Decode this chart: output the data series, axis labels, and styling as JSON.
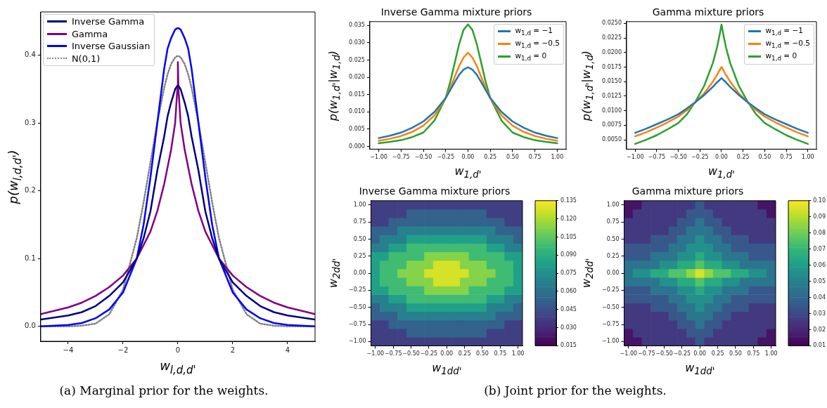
{
  "chart_data": [
    {
      "type": "line",
      "xlabel": "w$_{l,d,d'}$",
      "ylabel": "p(w$_{l,d,d'}$)",
      "legend": "top left",
      "annotations": [
        "(a) Marginal prior for the weights."
      ],
      "x": [
        -5,
        -4,
        -3.5,
        -3,
        -2.5,
        -2,
        -1.5,
        -1.25,
        -1,
        -0.75,
        -0.5,
        -0.375,
        -0.25,
        -0.1,
        -0.02,
        0,
        0.02,
        0.1,
        0.25,
        0.375,
        0.5,
        0.75,
        1,
        1.25,
        1.5,
        2,
        2.5,
        3,
        3.5,
        4,
        5
      ],
      "series": [
        {
          "name": "Inverse Gamma",
          "color": "#000080",
          "values": [
            0.01,
            0.016,
            0.021,
            0.03,
            0.045,
            0.065,
            0.1,
            0.13,
            0.17,
            0.23,
            0.28,
            0.31,
            0.33,
            0.35,
            0.355,
            0.355,
            0.355,
            0.35,
            0.33,
            0.31,
            0.28,
            0.23,
            0.17,
            0.13,
            0.1,
            0.065,
            0.045,
            0.03,
            0.021,
            0.016,
            0.01
          ]
        },
        {
          "name": "Gamma",
          "color": "#800080",
          "values": [
            0.018,
            0.028,
            0.035,
            0.045,
            0.058,
            0.075,
            0.1,
            0.12,
            0.14,
            0.17,
            0.21,
            0.235,
            0.26,
            0.3,
            0.35,
            0.39,
            0.35,
            0.3,
            0.26,
            0.235,
            0.21,
            0.17,
            0.14,
            0.12,
            0.1,
            0.075,
            0.058,
            0.045,
            0.035,
            0.028,
            0.018
          ]
        },
        {
          "name": "Inverse Gaussian",
          "color": "#0000ff",
          "values": [
            0.0,
            0.002,
            0.005,
            0.012,
            0.025,
            0.05,
            0.1,
            0.15,
            0.22,
            0.3,
            0.38,
            0.41,
            0.425,
            0.438,
            0.44,
            0.44,
            0.44,
            0.438,
            0.425,
            0.41,
            0.38,
            0.3,
            0.22,
            0.15,
            0.1,
            0.05,
            0.025,
            0.012,
            0.005,
            0.002,
            0.0
          ]
        },
        {
          "name": "N(0,1)",
          "color": "#808080",
          "line_style": "dotted",
          "values": [
            0.0,
            0.0,
            0.001,
            0.004,
            0.018,
            0.054,
            0.13,
            0.183,
            0.242,
            0.301,
            0.352,
            0.372,
            0.387,
            0.397,
            0.399,
            0.399,
            0.399,
            0.397,
            0.387,
            0.372,
            0.352,
            0.301,
            0.242,
            0.183,
            0.13,
            0.054,
            0.018,
            0.004,
            0.001,
            0.0,
            0.0
          ]
        }
      ],
      "xlim": [
        -5,
        5
      ],
      "ylim": [
        -0.022,
        0.464
      ],
      "xticks": [
        {
          "value": -4,
          "label": "−4"
        },
        {
          "value": -2,
          "label": "−2"
        },
        0,
        2,
        4
      ],
      "yticks": [
        {
          "value": 0,
          "label": "0.0"
        },
        0.1,
        0.2,
        0.3,
        0.4
      ]
    },
    {
      "type": "line",
      "title": "Inverse Gamma mixture priors",
      "xlabel": "w$_{1,d'}$",
      "ylabel": "p(w$_{1,d'}$|w$_{1,d}$)",
      "legend": "top right",
      "x": [
        -1,
        -0.875,
        -0.75,
        -0.625,
        -0.5,
        -0.375,
        -0.25,
        -0.2,
        -0.15,
        -0.1,
        -0.05,
        0,
        0.05,
        0.1,
        0.15,
        0.2,
        0.25,
        0.375,
        0.5,
        0.625,
        0.75,
        0.875,
        1
      ],
      "series": [
        {
          "name": "w$_{1,d}$ = −1",
          "color": "#1f77b4",
          "values": [
            0.0024,
            0.0031,
            0.004,
            0.0054,
            0.0072,
            0.01,
            0.014,
            0.0162,
            0.0185,
            0.0207,
            0.0222,
            0.0229,
            0.0222,
            0.0207,
            0.0185,
            0.0162,
            0.014,
            0.01,
            0.0072,
            0.0054,
            0.004,
            0.0031,
            0.0024
          ]
        },
        {
          "name": "w$_{1,d}$ = −0.5",
          "color": "#ff7f0e",
          "values": [
            0.0016,
            0.0022,
            0.003,
            0.0042,
            0.006,
            0.009,
            0.014,
            0.0168,
            0.02,
            0.0232,
            0.0257,
            0.0271,
            0.0257,
            0.0232,
            0.02,
            0.0168,
            0.014,
            0.009,
            0.006,
            0.0042,
            0.003,
            0.0022,
            0.0016
          ]
        },
        {
          "name": "w$_{1,d}$ = 0",
          "color": "#2ca02c",
          "values": [
            0.0009,
            0.0013,
            0.0018,
            0.0027,
            0.004,
            0.0075,
            0.014,
            0.0185,
            0.024,
            0.0295,
            0.0337,
            0.0353,
            0.0337,
            0.0295,
            0.024,
            0.0185,
            0.014,
            0.0075,
            0.004,
            0.0027,
            0.0018,
            0.0013,
            0.0009
          ]
        }
      ],
      "xlim": [
        -1.1,
        1.1
      ],
      "ylim": [
        -0.0008,
        0.0361
      ],
      "xticks": [
        {
          "value": -1,
          "label": "−1.00"
        },
        {
          "value": -0.75,
          "label": "−0.75"
        },
        {
          "value": -0.5,
          "label": "−0.50"
        },
        {
          "value": -0.25,
          "label": "−0.25"
        },
        {
          "value": 0,
          "label": "0.00"
        },
        0.25,
        {
          "value": 0.5,
          "label": "0.50"
        },
        0.75,
        {
          "value": 1,
          "label": "1.00"
        }
      ],
      "yticks": [
        {
          "value": 0,
          "label": "0.000"
        },
        0.005,
        {
          "value": 0.01,
          "label": "0.010"
        },
        0.015,
        {
          "value": 0.02,
          "label": "0.020"
        },
        0.025,
        {
          "value": 0.03,
          "label": "0.030"
        },
        0.035
      ]
    },
    {
      "type": "line",
      "title": "Gamma mixture priors",
      "xlabel": "w$_{1,d'}$",
      "ylabel": "p(w$_{1,d'}$|w$_{1,d}$)",
      "legend": "top right",
      "x": [
        -1,
        -0.875,
        -0.75,
        -0.625,
        -0.5,
        -0.4,
        -0.3,
        -0.2,
        -0.1,
        -0.05,
        -0.02,
        0,
        0.02,
        0.05,
        0.1,
        0.2,
        0.3,
        0.4,
        0.5,
        0.625,
        0.75,
        0.875,
        1
      ],
      "series": [
        {
          "name": "w$_{1,d}$ = −1",
          "color": "#1f77b4",
          "values": [
            0.0062,
            0.0069,
            0.0077,
            0.0085,
            0.0094,
            0.0104,
            0.0115,
            0.0127,
            0.0141,
            0.0149,
            0.0153,
            0.0156,
            0.0153,
            0.0149,
            0.0141,
            0.0127,
            0.0115,
            0.0104,
            0.0094,
            0.0085,
            0.0077,
            0.0069,
            0.0062
          ]
        },
        {
          "name": "w$_{1,d}$ = −0.5",
          "color": "#ff7f0e",
          "values": [
            0.0056,
            0.0063,
            0.0071,
            0.008,
            0.009,
            0.0101,
            0.0115,
            0.013,
            0.015,
            0.0162,
            0.017,
            0.0175,
            0.017,
            0.0162,
            0.015,
            0.013,
            0.0115,
            0.0101,
            0.009,
            0.008,
            0.0071,
            0.0063,
            0.0056
          ]
        },
        {
          "name": "w$_{1,d}$ = 0",
          "color": "#2ca02c",
          "values": [
            0.0043,
            0.005,
            0.0058,
            0.0068,
            0.0079,
            0.0094,
            0.0116,
            0.0143,
            0.0182,
            0.021,
            0.0232,
            0.0248,
            0.0232,
            0.021,
            0.0182,
            0.0143,
            0.0116,
            0.0094,
            0.0079,
            0.0068,
            0.0058,
            0.005,
            0.0043
          ]
        }
      ],
      "xlim": [
        -1.1,
        1.1
      ],
      "ylim": [
        0.0034,
        0.0253
      ],
      "xticks": [
        {
          "value": -1,
          "label": "−1.00"
        },
        {
          "value": -0.75,
          "label": "−0.75"
        },
        {
          "value": -0.5,
          "label": "−0.50"
        },
        {
          "value": -0.25,
          "label": "−0.25"
        },
        {
          "value": 0,
          "label": "0.00"
        },
        0.25,
        {
          "value": 0.5,
          "label": "0.50"
        },
        0.75,
        {
          "value": 1,
          "label": "1.00"
        }
      ],
      "yticks": [
        {
          "value": 0.005,
          "label": "0.0050"
        },
        0.0075,
        {
          "value": 0.01,
          "label": "0.0100"
        },
        0.0125,
        {
          "value": 0.015,
          "label": "0.0150"
        },
        0.0175,
        {
          "value": 0.02,
          "label": "0.0200"
        },
        0.0225,
        {
          "value": 0.025,
          "label": "0.0250"
        }
      ]
    },
    {
      "type": "heatmap",
      "title": "Inverse Gamma mixture priors",
      "xlabel": "w$_{1dd'}$",
      "ylabel": "w$_{2dd'}$",
      "annotations": [
        "(b) Joint prior for the weights."
      ],
      "categories": [
        "−1.00",
        null,
        "−0.75",
        null,
        "−0.50",
        null,
        "−0.25",
        null,
        "0.00",
        null,
        "0.25",
        null,
        "0.50",
        null,
        "0.75",
        null,
        "1.00"
      ],
      "y_categories": [
        "1.00",
        null,
        "0.75",
        null,
        "0.50",
        null,
        "0.25",
        null,
        "0.00",
        null,
        "−0.25",
        null,
        "−0.50",
        null,
        "−0.75",
        null,
        "−1.00"
      ],
      "cells": [
        [
          0.0375,
          0.0375,
          0.0375,
          0.0375,
          0.0375,
          0.0375,
          0.0375,
          0.0375,
          0.0375,
          0.0375,
          0.0375,
          0.0375,
          0.0375,
          0.0375,
          0.0375,
          0.0375,
          0.0375
        ],
        [
          0.0375,
          0.0375,
          0.0375,
          0.0375,
          0.0525,
          0.0525,
          0.0525,
          0.0525,
          0.0525,
          0.0525,
          0.0525,
          0.0525,
          0.0525,
          0.0375,
          0.0375,
          0.0375,
          0.0375
        ],
        [
          0.0375,
          0.0375,
          0.0525,
          0.0525,
          0.0525,
          0.0525,
          0.0525,
          0.0525,
          0.0525,
          0.0525,
          0.0525,
          0.0525,
          0.0525,
          0.0525,
          0.0525,
          0.0375,
          0.0375
        ],
        [
          0.0525,
          0.0525,
          0.0525,
          0.0675,
          0.0675,
          0.0675,
          0.0675,
          0.0675,
          0.0675,
          0.0675,
          0.0675,
          0.0675,
          0.0675,
          0.0675,
          0.0525,
          0.0525,
          0.0525
        ],
        [
          0.0525,
          0.0675,
          0.0675,
          0.0675,
          0.0825,
          0.0825,
          0.0825,
          0.0825,
          0.0825,
          0.0825,
          0.0825,
          0.0825,
          0.0825,
          0.0675,
          0.0675,
          0.0675,
          0.0525
        ],
        [
          0.0675,
          0.0675,
          0.0825,
          0.0825,
          0.0975,
          0.0975,
          0.0975,
          0.0975,
          0.0975,
          0.0975,
          0.0975,
          0.0975,
          0.0975,
          0.0825,
          0.0825,
          0.0675,
          0.0675
        ],
        [
          0.0825,
          0.0825,
          0.0975,
          0.0975,
          0.0975,
          0.0975,
          0.1125,
          0.1125,
          0.1125,
          0.1125,
          0.1125,
          0.0975,
          0.0975,
          0.0975,
          0.0975,
          0.0825,
          0.0825
        ],
        [
          0.0825,
          0.0975,
          0.0975,
          0.0975,
          0.1125,
          0.1125,
          0.1125,
          0.1275,
          0.1275,
          0.1275,
          0.1125,
          0.1125,
          0.1125,
          0.0975,
          0.0975,
          0.0975,
          0.0825
        ],
        [
          0.0825,
          0.0975,
          0.0975,
          0.1125,
          0.1125,
          0.1125,
          0.1275,
          0.1275,
          0.1275,
          0.1275,
          0.1275,
          0.1125,
          0.1125,
          0.1125,
          0.0975,
          0.0975,
          0.0825
        ],
        [
          0.0825,
          0.0975,
          0.0975,
          0.0975,
          0.1125,
          0.1125,
          0.1125,
          0.1275,
          0.1275,
          0.1275,
          0.1125,
          0.1125,
          0.1125,
          0.0975,
          0.0975,
          0.0975,
          0.0825
        ],
        [
          0.0825,
          0.0825,
          0.0975,
          0.0975,
          0.0975,
          0.0975,
          0.1125,
          0.1125,
          0.1125,
          0.1125,
          0.1125,
          0.0975,
          0.0975,
          0.0975,
          0.0975,
          0.0825,
          0.0825
        ],
        [
          0.0675,
          0.0675,
          0.0825,
          0.0825,
          0.0975,
          0.0975,
          0.0975,
          0.0975,
          0.0975,
          0.0975,
          0.0975,
          0.0975,
          0.0975,
          0.0825,
          0.0825,
          0.0675,
          0.0675
        ],
        [
          0.0525,
          0.0675,
          0.0675,
          0.0675,
          0.0825,
          0.0825,
          0.0825,
          0.0825,
          0.0825,
          0.0825,
          0.0825,
          0.0825,
          0.0825,
          0.0675,
          0.0675,
          0.0675,
          0.0525
        ],
        [
          0.0525,
          0.0525,
          0.0525,
          0.0675,
          0.0675,
          0.0675,
          0.0675,
          0.0675,
          0.0675,
          0.0675,
          0.0675,
          0.0675,
          0.0675,
          0.0675,
          0.0525,
          0.0525,
          0.0525
        ],
        [
          0.0375,
          0.0375,
          0.0525,
          0.0525,
          0.0525,
          0.0525,
          0.0525,
          0.0525,
          0.0525,
          0.0525,
          0.0525,
          0.0525,
          0.0525,
          0.0525,
          0.0525,
          0.0375,
          0.0375
        ],
        [
          0.0375,
          0.0375,
          0.0375,
          0.0375,
          0.0525,
          0.0525,
          0.0525,
          0.0525,
          0.0525,
          0.0525,
          0.0525,
          0.0525,
          0.0525,
          0.0375,
          0.0375,
          0.0375,
          0.0375
        ],
        [
          0.0375,
          0.0375,
          0.0375,
          0.0375,
          0.0375,
          0.0375,
          0.0375,
          0.0375,
          0.0375,
          0.0375,
          0.0375,
          0.0375,
          0.0375,
          0.0375,
          0.0375,
          0.0375,
          0.0375
        ]
      ],
      "clim": [
        0.015,
        0.135
      ],
      "cticks": [
        0.015,
        {
          "value": 0.03,
          "label": "0.030"
        },
        0.045,
        {
          "value": 0.06,
          "label": "0.060"
        },
        0.075,
        {
          "value": 0.09,
          "label": "0.090"
        },
        0.105,
        {
          "value": 0.12,
          "label": "0.120"
        },
        0.135
      ]
    },
    {
      "type": "heatmap",
      "title": "Gamma mixture priors",
      "xlabel": "w$_{1dd'}$",
      "ylabel": "w$_{2dd'}$",
      "categories": [
        "−1.00",
        null,
        "−0.75",
        null,
        "−0.50",
        null,
        "−0.25",
        null,
        "0.00",
        null,
        "0.25",
        null,
        "0.50",
        null,
        "0.75",
        null,
        "1.00"
      ],
      "y_categories": [
        "1.00",
        null,
        "0.75",
        null,
        "0.50",
        null,
        "0.25",
        null,
        "0.00",
        null,
        "−0.25",
        null,
        "−0.50",
        null,
        "−0.75",
        null,
        "−1.00"
      ],
      "cells": [
        [
          0.015,
          0.015,
          0.025,
          0.025,
          0.025,
          0.025,
          0.025,
          0.025,
          0.035,
          0.025,
          0.025,
          0.025,
          0.025,
          0.025,
          0.025,
          0.015,
          0.015
        ],
        [
          0.015,
          0.025,
          0.025,
          0.025,
          0.025,
          0.025,
          0.025,
          0.035,
          0.035,
          0.035,
          0.025,
          0.025,
          0.025,
          0.025,
          0.025,
          0.025,
          0.015
        ],
        [
          0.025,
          0.025,
          0.025,
          0.025,
          0.025,
          0.025,
          0.035,
          0.035,
          0.045,
          0.035,
          0.035,
          0.025,
          0.025,
          0.025,
          0.025,
          0.025,
          0.025
        ],
        [
          0.025,
          0.025,
          0.025,
          0.025,
          0.025,
          0.035,
          0.035,
          0.045,
          0.045,
          0.045,
          0.035,
          0.035,
          0.025,
          0.025,
          0.025,
          0.025,
          0.025
        ],
        [
          0.025,
          0.025,
          0.025,
          0.035,
          0.035,
          0.035,
          0.045,
          0.045,
          0.055,
          0.045,
          0.045,
          0.035,
          0.035,
          0.035,
          0.025,
          0.025,
          0.025
        ],
        [
          0.035,
          0.035,
          0.035,
          0.035,
          0.035,
          0.045,
          0.045,
          0.055,
          0.055,
          0.055,
          0.045,
          0.045,
          0.035,
          0.035,
          0.035,
          0.035,
          0.035
        ],
        [
          0.035,
          0.035,
          0.035,
          0.045,
          0.045,
          0.045,
          0.055,
          0.055,
          0.065,
          0.055,
          0.055,
          0.045,
          0.045,
          0.045,
          0.035,
          0.035,
          0.035
        ],
        [
          0.045,
          0.045,
          0.045,
          0.045,
          0.055,
          0.055,
          0.065,
          0.065,
          0.075,
          0.065,
          0.065,
          0.055,
          0.055,
          0.045,
          0.045,
          0.045,
          0.045
        ],
        [
          0.045,
          0.055,
          0.055,
          0.065,
          0.065,
          0.075,
          0.075,
          0.085,
          0.095,
          0.085,
          0.075,
          0.075,
          0.065,
          0.065,
          0.055,
          0.055,
          0.045
        ],
        [
          0.045,
          0.045,
          0.045,
          0.045,
          0.055,
          0.055,
          0.065,
          0.065,
          0.075,
          0.065,
          0.065,
          0.055,
          0.055,
          0.045,
          0.045,
          0.045,
          0.045
        ],
        [
          0.035,
          0.035,
          0.035,
          0.045,
          0.045,
          0.045,
          0.055,
          0.055,
          0.065,
          0.055,
          0.055,
          0.045,
          0.045,
          0.045,
          0.035,
          0.035,
          0.035
        ],
        [
          0.035,
          0.035,
          0.035,
          0.035,
          0.035,
          0.045,
          0.045,
          0.055,
          0.055,
          0.055,
          0.045,
          0.045,
          0.035,
          0.035,
          0.035,
          0.035,
          0.035
        ],
        [
          0.025,
          0.025,
          0.025,
          0.035,
          0.035,
          0.035,
          0.045,
          0.045,
          0.055,
          0.045,
          0.045,
          0.035,
          0.035,
          0.035,
          0.025,
          0.025,
          0.025
        ],
        [
          0.025,
          0.025,
          0.025,
          0.025,
          0.025,
          0.035,
          0.035,
          0.045,
          0.045,
          0.045,
          0.035,
          0.035,
          0.025,
          0.025,
          0.025,
          0.025,
          0.025
        ],
        [
          0.025,
          0.025,
          0.025,
          0.025,
          0.025,
          0.025,
          0.035,
          0.035,
          0.045,
          0.035,
          0.035,
          0.025,
          0.025,
          0.025,
          0.025,
          0.025,
          0.025
        ],
        [
          0.015,
          0.025,
          0.025,
          0.025,
          0.025,
          0.025,
          0.025,
          0.035,
          0.035,
          0.035,
          0.025,
          0.025,
          0.025,
          0.025,
          0.025,
          0.025,
          0.015
        ],
        [
          0.015,
          0.015,
          0.025,
          0.025,
          0.025,
          0.025,
          0.025,
          0.025,
          0.035,
          0.025,
          0.025,
          0.025,
          0.025,
          0.025,
          0.025,
          0.015,
          0.015
        ]
      ],
      "clim": [
        0.01,
        0.1
      ],
      "cticks": [
        0.01,
        0.02,
        0.03,
        0.04,
        0.05,
        0.06,
        0.07,
        0.08,
        0.09,
        {
          "value": 0.1,
          "label": "0.10"
        }
      ]
    }
  ]
}
